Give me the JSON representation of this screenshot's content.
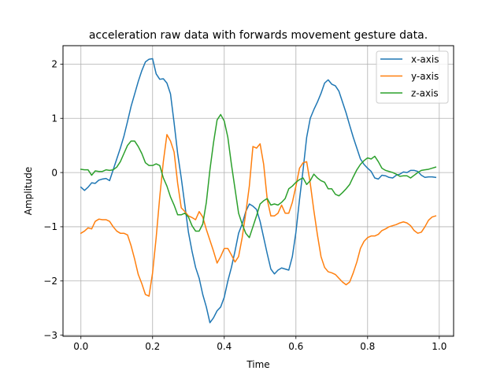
{
  "chart_data": {
    "type": "line",
    "title": "acceleration raw data with forwards movement gesture data.",
    "xlabel": "Time",
    "ylabel": "Amplitude",
    "xlim": [
      -0.05,
      1.04
    ],
    "ylim": [
      -3.02,
      2.34
    ],
    "xticks": [
      0.0,
      0.2,
      0.4,
      0.6,
      0.8,
      1.0
    ],
    "xtick_labels": [
      "0.0",
      "0.2",
      "0.4",
      "0.6",
      "0.8",
      "1.0"
    ],
    "yticks": [
      -3,
      -2,
      -1,
      0,
      1,
      2
    ],
    "ytick_labels": [
      "−3",
      "−2",
      "−1",
      "0",
      "1",
      "2"
    ],
    "grid": true,
    "legend_position": "top-right",
    "series": [
      {
        "name": "x-axis",
        "color": "#1f77b4",
        "points": [
          [
            0.0,
            -0.27
          ],
          [
            0.01,
            -0.33
          ],
          [
            0.02,
            -0.27
          ],
          [
            0.03,
            -0.19
          ],
          [
            0.04,
            -0.2
          ],
          [
            0.05,
            -0.14
          ],
          [
            0.06,
            -0.12
          ],
          [
            0.07,
            -0.11
          ],
          [
            0.08,
            -0.15
          ],
          [
            0.09,
            0.05
          ],
          [
            0.1,
            0.25
          ],
          [
            0.11,
            0.45
          ],
          [
            0.12,
            0.67
          ],
          [
            0.13,
            0.94
          ],
          [
            0.14,
            1.22
          ],
          [
            0.15,
            1.45
          ],
          [
            0.16,
            1.68
          ],
          [
            0.17,
            1.88
          ],
          [
            0.18,
            2.04
          ],
          [
            0.19,
            2.09
          ],
          [
            0.2,
            2.1
          ],
          [
            0.21,
            1.82
          ],
          [
            0.22,
            1.72
          ],
          [
            0.23,
            1.73
          ],
          [
            0.24,
            1.65
          ],
          [
            0.25,
            1.45
          ],
          [
            0.26,
            0.92
          ],
          [
            0.27,
            0.35
          ],
          [
            0.28,
            -0.1
          ],
          [
            0.29,
            -0.6
          ],
          [
            0.3,
            -1.1
          ],
          [
            0.31,
            -1.45
          ],
          [
            0.32,
            -1.75
          ],
          [
            0.33,
            -1.95
          ],
          [
            0.34,
            -2.25
          ],
          [
            0.35,
            -2.48
          ],
          [
            0.36,
            -2.77
          ],
          [
            0.37,
            -2.68
          ],
          [
            0.38,
            -2.55
          ],
          [
            0.39,
            -2.48
          ],
          [
            0.4,
            -2.3
          ],
          [
            0.41,
            -2.0
          ],
          [
            0.42,
            -1.75
          ],
          [
            0.43,
            -1.45
          ],
          [
            0.44,
            -1.12
          ],
          [
            0.45,
            -0.95
          ],
          [
            0.46,
            -0.72
          ],
          [
            0.47,
            -0.58
          ],
          [
            0.48,
            -0.62
          ],
          [
            0.49,
            -0.68
          ],
          [
            0.5,
            -0.9
          ],
          [
            0.51,
            -1.2
          ],
          [
            0.52,
            -1.5
          ],
          [
            0.53,
            -1.78
          ],
          [
            0.54,
            -1.87
          ],
          [
            0.55,
            -1.8
          ],
          [
            0.56,
            -1.76
          ],
          [
            0.57,
            -1.78
          ],
          [
            0.58,
            -1.8
          ],
          [
            0.59,
            -1.55
          ],
          [
            0.6,
            -1.1
          ],
          [
            0.61,
            -0.5
          ],
          [
            0.62,
            0.05
          ],
          [
            0.63,
            0.65
          ],
          [
            0.64,
            1.0
          ],
          [
            0.65,
            1.16
          ],
          [
            0.66,
            1.3
          ],
          [
            0.67,
            1.46
          ],
          [
            0.68,
            1.65
          ],
          [
            0.69,
            1.71
          ],
          [
            0.7,
            1.63
          ],
          [
            0.71,
            1.6
          ],
          [
            0.72,
            1.5
          ],
          [
            0.73,
            1.3
          ],
          [
            0.74,
            1.1
          ],
          [
            0.75,
            0.87
          ],
          [
            0.76,
            0.65
          ],
          [
            0.77,
            0.45
          ],
          [
            0.78,
            0.25
          ],
          [
            0.79,
            0.15
          ],
          [
            0.8,
            0.08
          ],
          [
            0.81,
            0.02
          ],
          [
            0.82,
            -0.1
          ],
          [
            0.83,
            -0.12
          ],
          [
            0.84,
            -0.05
          ],
          [
            0.85,
            -0.06
          ],
          [
            0.86,
            -0.09
          ],
          [
            0.87,
            -0.1
          ],
          [
            0.88,
            -0.05
          ],
          [
            0.89,
            -0.03
          ],
          [
            0.9,
            0.01
          ],
          [
            0.91,
            0.0
          ],
          [
            0.92,
            0.04
          ],
          [
            0.93,
            0.04
          ],
          [
            0.94,
            0.02
          ],
          [
            0.95,
            -0.05
          ],
          [
            0.96,
            -0.09
          ],
          [
            0.97,
            -0.08
          ],
          [
            0.98,
            -0.08
          ],
          [
            0.99,
            -0.09
          ]
        ]
      },
      {
        "name": "y-axis",
        "color": "#ff7f0e",
        "points": [
          [
            0.0,
            -1.12
          ],
          [
            0.01,
            -1.08
          ],
          [
            0.02,
            -1.02
          ],
          [
            0.03,
            -1.04
          ],
          [
            0.04,
            -0.9
          ],
          [
            0.05,
            -0.86
          ],
          [
            0.06,
            -0.87
          ],
          [
            0.07,
            -0.87
          ],
          [
            0.08,
            -0.9
          ],
          [
            0.09,
            -1.0
          ],
          [
            0.1,
            -1.08
          ],
          [
            0.11,
            -1.12
          ],
          [
            0.12,
            -1.12
          ],
          [
            0.13,
            -1.15
          ],
          [
            0.14,
            -1.35
          ],
          [
            0.15,
            -1.6
          ],
          [
            0.16,
            -1.88
          ],
          [
            0.17,
            -2.05
          ],
          [
            0.18,
            -2.25
          ],
          [
            0.19,
            -2.28
          ],
          [
            0.2,
            -1.85
          ],
          [
            0.21,
            -1.2
          ],
          [
            0.22,
            -0.45
          ],
          [
            0.23,
            0.2
          ],
          [
            0.24,
            0.7
          ],
          [
            0.25,
            0.58
          ],
          [
            0.26,
            0.38
          ],
          [
            0.27,
            -0.2
          ],
          [
            0.28,
            -0.65
          ],
          [
            0.29,
            -0.72
          ],
          [
            0.3,
            -0.8
          ],
          [
            0.31,
            -0.83
          ],
          [
            0.32,
            -0.87
          ],
          [
            0.33,
            -0.72
          ],
          [
            0.34,
            -0.82
          ],
          [
            0.35,
            -1.05
          ],
          [
            0.36,
            -1.25
          ],
          [
            0.37,
            -1.45
          ],
          [
            0.38,
            -1.67
          ],
          [
            0.39,
            -1.55
          ],
          [
            0.4,
            -1.4
          ],
          [
            0.41,
            -1.4
          ],
          [
            0.42,
            -1.52
          ],
          [
            0.43,
            -1.65
          ],
          [
            0.44,
            -1.55
          ],
          [
            0.45,
            -1.2
          ],
          [
            0.46,
            -0.75
          ],
          [
            0.47,
            -0.25
          ],
          [
            0.48,
            0.48
          ],
          [
            0.49,
            0.45
          ],
          [
            0.5,
            0.53
          ],
          [
            0.51,
            0.15
          ],
          [
            0.52,
            -0.5
          ],
          [
            0.53,
            -0.8
          ],
          [
            0.54,
            -0.8
          ],
          [
            0.55,
            -0.75
          ],
          [
            0.56,
            -0.6
          ],
          [
            0.57,
            -0.75
          ],
          [
            0.58,
            -0.75
          ],
          [
            0.59,
            -0.55
          ],
          [
            0.6,
            -0.25
          ],
          [
            0.61,
            0.08
          ],
          [
            0.62,
            0.18
          ],
          [
            0.63,
            0.2
          ],
          [
            0.64,
            -0.2
          ],
          [
            0.65,
            -0.7
          ],
          [
            0.66,
            -1.15
          ],
          [
            0.67,
            -1.55
          ],
          [
            0.68,
            -1.75
          ],
          [
            0.69,
            -1.83
          ],
          [
            0.7,
            -1.85
          ],
          [
            0.71,
            -1.88
          ],
          [
            0.72,
            -1.95
          ],
          [
            0.73,
            -2.02
          ],
          [
            0.74,
            -2.07
          ],
          [
            0.75,
            -2.02
          ],
          [
            0.76,
            -1.85
          ],
          [
            0.77,
            -1.65
          ],
          [
            0.78,
            -1.4
          ],
          [
            0.79,
            -1.27
          ],
          [
            0.8,
            -1.2
          ],
          [
            0.81,
            -1.17
          ],
          [
            0.82,
            -1.17
          ],
          [
            0.83,
            -1.14
          ],
          [
            0.84,
            -1.07
          ],
          [
            0.85,
            -1.04
          ],
          [
            0.86,
            -1.0
          ],
          [
            0.87,
            -0.98
          ],
          [
            0.88,
            -0.96
          ],
          [
            0.89,
            -0.93
          ],
          [
            0.9,
            -0.91
          ],
          [
            0.91,
            -0.93
          ],
          [
            0.92,
            -0.98
          ],
          [
            0.93,
            -1.07
          ],
          [
            0.94,
            -1.12
          ],
          [
            0.95,
            -1.1
          ],
          [
            0.96,
            -1.0
          ],
          [
            0.97,
            -0.88
          ],
          [
            0.98,
            -0.82
          ],
          [
            0.99,
            -0.8
          ]
        ]
      },
      {
        "name": "z-axis",
        "color": "#2ca02c",
        "points": [
          [
            0.0,
            0.06
          ],
          [
            0.01,
            0.05
          ],
          [
            0.02,
            0.05
          ],
          [
            0.03,
            -0.05
          ],
          [
            0.04,
            0.03
          ],
          [
            0.05,
            0.02
          ],
          [
            0.06,
            0.02
          ],
          [
            0.07,
            0.05
          ],
          [
            0.08,
            0.04
          ],
          [
            0.09,
            0.05
          ],
          [
            0.1,
            0.1
          ],
          [
            0.11,
            0.2
          ],
          [
            0.12,
            0.35
          ],
          [
            0.13,
            0.5
          ],
          [
            0.14,
            0.58
          ],
          [
            0.15,
            0.58
          ],
          [
            0.16,
            0.48
          ],
          [
            0.17,
            0.35
          ],
          [
            0.18,
            0.18
          ],
          [
            0.19,
            0.13
          ],
          [
            0.2,
            0.13
          ],
          [
            0.21,
            0.16
          ],
          [
            0.22,
            0.13
          ],
          [
            0.23,
            -0.1
          ],
          [
            0.24,
            -0.25
          ],
          [
            0.25,
            -0.45
          ],
          [
            0.26,
            -0.6
          ],
          [
            0.27,
            -0.78
          ],
          [
            0.28,
            -0.78
          ],
          [
            0.29,
            -0.75
          ],
          [
            0.3,
            -0.82
          ],
          [
            0.31,
            -0.98
          ],
          [
            0.32,
            -1.08
          ],
          [
            0.33,
            -1.08
          ],
          [
            0.34,
            -0.95
          ],
          [
            0.35,
            -0.55
          ],
          [
            0.36,
            0.05
          ],
          [
            0.37,
            0.55
          ],
          [
            0.38,
            0.97
          ],
          [
            0.39,
            1.07
          ],
          [
            0.4,
            0.95
          ],
          [
            0.41,
            0.65
          ],
          [
            0.42,
            0.15
          ],
          [
            0.43,
            -0.3
          ],
          [
            0.44,
            -0.75
          ],
          [
            0.45,
            -0.95
          ],
          [
            0.46,
            -1.12
          ],
          [
            0.47,
            -1.2
          ],
          [
            0.48,
            -1.0
          ],
          [
            0.49,
            -0.8
          ],
          [
            0.5,
            -0.58
          ],
          [
            0.51,
            -0.52
          ],
          [
            0.52,
            -0.48
          ],
          [
            0.53,
            -0.6
          ],
          [
            0.54,
            -0.58
          ],
          [
            0.55,
            -0.6
          ],
          [
            0.56,
            -0.55
          ],
          [
            0.57,
            -0.48
          ],
          [
            0.58,
            -0.3
          ],
          [
            0.59,
            -0.25
          ],
          [
            0.6,
            -0.18
          ],
          [
            0.61,
            -0.13
          ],
          [
            0.62,
            -0.1
          ],
          [
            0.63,
            -0.22
          ],
          [
            0.64,
            -0.15
          ],
          [
            0.65,
            -0.03
          ],
          [
            0.66,
            -0.1
          ],
          [
            0.67,
            -0.15
          ],
          [
            0.68,
            -0.18
          ],
          [
            0.69,
            -0.3
          ],
          [
            0.7,
            -0.3
          ],
          [
            0.71,
            -0.4
          ],
          [
            0.72,
            -0.43
          ],
          [
            0.73,
            -0.37
          ],
          [
            0.74,
            -0.3
          ],
          [
            0.75,
            -0.22
          ],
          [
            0.76,
            -0.08
          ],
          [
            0.77,
            0.05
          ],
          [
            0.78,
            0.15
          ],
          [
            0.79,
            0.22
          ],
          [
            0.8,
            0.27
          ],
          [
            0.81,
            0.25
          ],
          [
            0.82,
            0.3
          ],
          [
            0.83,
            0.2
          ],
          [
            0.84,
            0.08
          ],
          [
            0.85,
            0.04
          ],
          [
            0.86,
            0.02
          ],
          [
            0.87,
            0.0
          ],
          [
            0.88,
            -0.03
          ],
          [
            0.89,
            -0.07
          ],
          [
            0.9,
            -0.06
          ],
          [
            0.91,
            -0.06
          ],
          [
            0.92,
            -0.1
          ],
          [
            0.93,
            -0.05
          ],
          [
            0.94,
            0.0
          ],
          [
            0.95,
            0.04
          ],
          [
            0.96,
            0.05
          ],
          [
            0.97,
            0.06
          ],
          [
            0.98,
            0.08
          ],
          [
            0.99,
            0.1
          ]
        ]
      }
    ]
  }
}
